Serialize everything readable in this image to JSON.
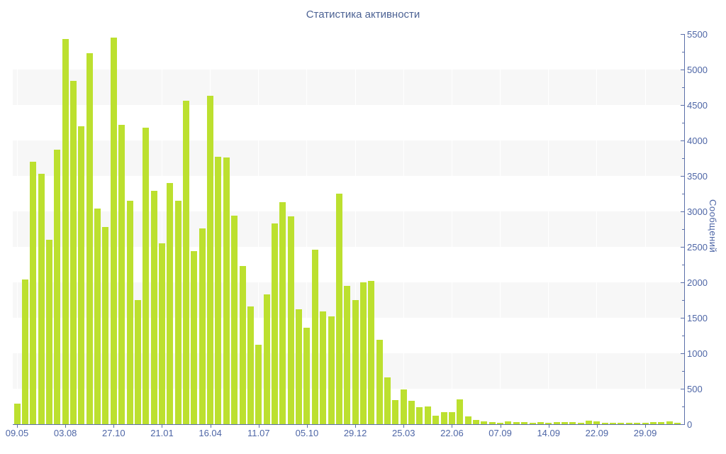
{
  "colors": {
    "bar": "#bce02f",
    "axis_line": "#5b6fa8",
    "tick_label": "#4e66a6",
    "title": "#4d6394",
    "stripe": "#f7f7f7"
  },
  "chart_data": {
    "type": "bar",
    "title": "Статистика активности",
    "ylabel": "Сообщений",
    "xlabel": "",
    "ylim": [
      0,
      5500
    ],
    "y_major_step": 500,
    "y_minor_step": 250,
    "grid": "horizontal gray/white bands every 500, faint white vertical lines at x ticks",
    "legend": "none",
    "x_ticks": [
      {
        "label": "09.05",
        "bar_index": 0
      },
      {
        "label": "03.08",
        "bar_index": 6
      },
      {
        "label": "27.10",
        "bar_index": 12
      },
      {
        "label": "21.01",
        "bar_index": 18
      },
      {
        "label": "16.04",
        "bar_index": 24
      },
      {
        "label": "11.07",
        "bar_index": 30
      },
      {
        "label": "05.10",
        "bar_index": 36
      },
      {
        "label": "29.12",
        "bar_index": 42
      },
      {
        "label": "25.03",
        "bar_index": 48
      },
      {
        "label": "22.06",
        "bar_index": 54
      },
      {
        "label": "07.09",
        "bar_index": 60
      },
      {
        "label": "14.09",
        "bar_index": 66
      },
      {
        "label": "22.09",
        "bar_index": 72
      },
      {
        "label": "29.09",
        "bar_index": 78
      }
    ],
    "values": [
      290,
      2040,
      3700,
      3530,
      2600,
      3870,
      5430,
      4840,
      4200,
      5230,
      3040,
      2780,
      5450,
      4220,
      3150,
      1750,
      4180,
      3290,
      2550,
      3400,
      3150,
      4560,
      2440,
      2760,
      4630,
      3770,
      3760,
      2940,
      2230,
      1660,
      1120,
      1830,
      2830,
      3130,
      2930,
      1620,
      1360,
      2460,
      1590,
      1520,
      3250,
      1950,
      1750,
      2000,
      2020,
      1190,
      660,
      340,
      490,
      330,
      240,
      250,
      120,
      170,
      170,
      350,
      110,
      60,
      40,
      30,
      20,
      45,
      30,
      35,
      25,
      30,
      25,
      35,
      30,
      35,
      25,
      55,
      45,
      25,
      25,
      20,
      25,
      25,
      20,
      35,
      35,
      45,
      20
    ]
  }
}
